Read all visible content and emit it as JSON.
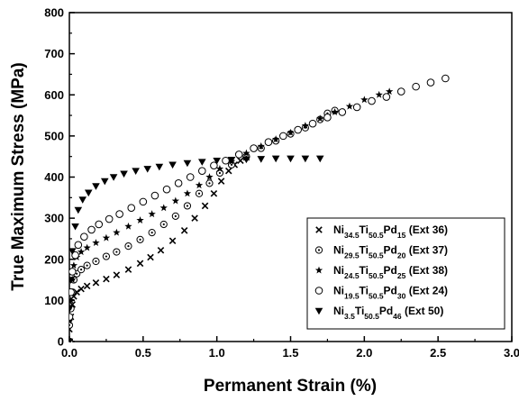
{
  "chart_data": {
    "type": "scatter",
    "title": "",
    "xlabel": "Permanent Strain (%)",
    "ylabel": "True Maximum Stress (MPa)",
    "xlim": [
      0,
      3.0
    ],
    "ylim": [
      0,
      800
    ],
    "xticks": [
      "0.0",
      "0.5",
      "1.0",
      "1.5",
      "2.0",
      "2.5",
      "3.0"
    ],
    "yticks": [
      "0",
      "100",
      "200",
      "300",
      "400",
      "500",
      "600",
      "700",
      "800"
    ],
    "grid": false,
    "legend_position": "bottom-right",
    "series": [
      {
        "id": "s1",
        "marker": "x",
        "label": {
          "el1": "Ni",
          "sub1": "34.5",
          "el2": "Ti",
          "sub2": "50.5",
          "el3": "Pd",
          "sub3": "15",
          "suffix": " (Ext 36)"
        },
        "points": [
          [
            0.0,
            0
          ],
          [
            0.0,
            30
          ],
          [
            0.01,
            60
          ],
          [
            0.02,
            90
          ],
          [
            0.03,
            110
          ],
          [
            0.05,
            120
          ],
          [
            0.08,
            128
          ],
          [
            0.12,
            135
          ],
          [
            0.18,
            143
          ],
          [
            0.25,
            152
          ],
          [
            0.32,
            162
          ],
          [
            0.4,
            175
          ],
          [
            0.48,
            190
          ],
          [
            0.55,
            205
          ],
          [
            0.62,
            222
          ],
          [
            0.7,
            245
          ],
          [
            0.78,
            270
          ],
          [
            0.85,
            300
          ],
          [
            0.92,
            330
          ],
          [
            0.98,
            360
          ],
          [
            1.03,
            390
          ],
          [
            1.08,
            415
          ],
          [
            1.12,
            430
          ],
          [
            1.16,
            440
          ],
          [
            1.2,
            448
          ]
        ]
      },
      {
        "id": "s2",
        "marker": "circle-dot",
        "label": {
          "el1": "Ni",
          "sub1": "29.5",
          "el2": "Ti",
          "sub2": "50.5",
          "el3": "Pd",
          "sub3": "20",
          "suffix": " (Ext 37)"
        },
        "points": [
          [
            0.0,
            0
          ],
          [
            0.0,
            40
          ],
          [
            0.01,
            80
          ],
          [
            0.02,
            120
          ],
          [
            0.03,
            150
          ],
          [
            0.05,
            165
          ],
          [
            0.08,
            175
          ],
          [
            0.12,
            185
          ],
          [
            0.18,
            195
          ],
          [
            0.25,
            207
          ],
          [
            0.32,
            218
          ],
          [
            0.4,
            232
          ],
          [
            0.48,
            248
          ],
          [
            0.56,
            265
          ],
          [
            0.64,
            285
          ],
          [
            0.72,
            305
          ],
          [
            0.8,
            330
          ],
          [
            0.88,
            360
          ],
          [
            0.95,
            385
          ],
          [
            1.02,
            410
          ],
          [
            1.1,
            430
          ],
          [
            1.2,
            450
          ],
          [
            1.3,
            470
          ],
          [
            1.4,
            488
          ],
          [
            1.5,
            505
          ],
          [
            1.6,
            520
          ],
          [
            1.7,
            540
          ],
          [
            1.75,
            555
          ],
          [
            1.8,
            562
          ]
        ]
      },
      {
        "id": "s3",
        "marker": "star",
        "label": {
          "el1": "Ni",
          "sub1": "24.5",
          "el2": "Ti",
          "sub2": "50.5",
          "el3": "Pd",
          "sub3": "25",
          "suffix": " (Ext 38)"
        },
        "points": [
          [
            0.0,
            0
          ],
          [
            0.0,
            50
          ],
          [
            0.01,
            100
          ],
          [
            0.02,
            150
          ],
          [
            0.03,
            185
          ],
          [
            0.05,
            205
          ],
          [
            0.08,
            218
          ],
          [
            0.12,
            228
          ],
          [
            0.18,
            240
          ],
          [
            0.25,
            252
          ],
          [
            0.32,
            265
          ],
          [
            0.4,
            280
          ],
          [
            0.48,
            295
          ],
          [
            0.56,
            310
          ],
          [
            0.64,
            325
          ],
          [
            0.72,
            342
          ],
          [
            0.8,
            360
          ],
          [
            0.88,
            380
          ],
          [
            0.95,
            400
          ],
          [
            1.02,
            420
          ],
          [
            1.1,
            438
          ],
          [
            1.2,
            458
          ],
          [
            1.3,
            475
          ],
          [
            1.4,
            492
          ],
          [
            1.5,
            508
          ],
          [
            1.6,
            525
          ],
          [
            1.7,
            542
          ],
          [
            1.8,
            558
          ],
          [
            1.9,
            572
          ],
          [
            2.0,
            588
          ],
          [
            2.1,
            600
          ],
          [
            2.17,
            608
          ]
        ]
      },
      {
        "id": "s4",
        "marker": "circle",
        "label": {
          "el1": "Ni",
          "sub1": "19.5",
          "el2": "Ti",
          "sub2": "50.5",
          "el3": "Pd",
          "sub3": "30",
          "suffix": " (Ext 24)"
        },
        "points": [
          [
            0.0,
            0
          ],
          [
            0.0,
            60
          ],
          [
            0.01,
            120
          ],
          [
            0.02,
            170
          ],
          [
            0.04,
            210
          ],
          [
            0.06,
            235
          ],
          [
            0.1,
            255
          ],
          [
            0.15,
            272
          ],
          [
            0.2,
            285
          ],
          [
            0.27,
            298
          ],
          [
            0.34,
            310
          ],
          [
            0.42,
            325
          ],
          [
            0.5,
            340
          ],
          [
            0.58,
            355
          ],
          [
            0.66,
            370
          ],
          [
            0.74,
            385
          ],
          [
            0.82,
            400
          ],
          [
            0.9,
            415
          ],
          [
            0.98,
            428
          ],
          [
            1.06,
            440
          ],
          [
            1.15,
            455
          ],
          [
            1.25,
            470
          ],
          [
            1.35,
            485
          ],
          [
            1.45,
            500
          ],
          [
            1.55,
            515
          ],
          [
            1.65,
            530
          ],
          [
            1.75,
            545
          ],
          [
            1.85,
            558
          ],
          [
            1.95,
            570
          ],
          [
            2.05,
            585
          ],
          [
            2.15,
            595
          ],
          [
            2.25,
            608
          ],
          [
            2.35,
            620
          ],
          [
            2.45,
            630
          ],
          [
            2.55,
            640
          ]
        ]
      },
      {
        "id": "s5",
        "marker": "triangle-down",
        "label": {
          "el1": "Ni",
          "sub1": "3.5",
          "el2": "Ti",
          "sub2": "50.5",
          "el3": "Pd",
          "sub3": "46",
          "suffix": " (Ext 50)"
        },
        "points": [
          [
            0.0,
            0
          ],
          [
            0.0,
            80
          ],
          [
            0.01,
            150
          ],
          [
            0.02,
            220
          ],
          [
            0.04,
            280
          ],
          [
            0.06,
            320
          ],
          [
            0.09,
            345
          ],
          [
            0.13,
            362
          ],
          [
            0.18,
            378
          ],
          [
            0.24,
            390
          ],
          [
            0.3,
            400
          ],
          [
            0.37,
            408
          ],
          [
            0.45,
            415
          ],
          [
            0.53,
            420
          ],
          [
            0.61,
            425
          ],
          [
            0.7,
            430
          ],
          [
            0.8,
            434
          ],
          [
            0.9,
            437
          ],
          [
            1.0,
            440
          ],
          [
            1.1,
            442
          ],
          [
            1.2,
            443
          ],
          [
            1.3,
            444
          ],
          [
            1.4,
            445
          ],
          [
            1.5,
            445
          ],
          [
            1.6,
            445
          ],
          [
            1.7,
            445
          ]
        ]
      }
    ]
  }
}
